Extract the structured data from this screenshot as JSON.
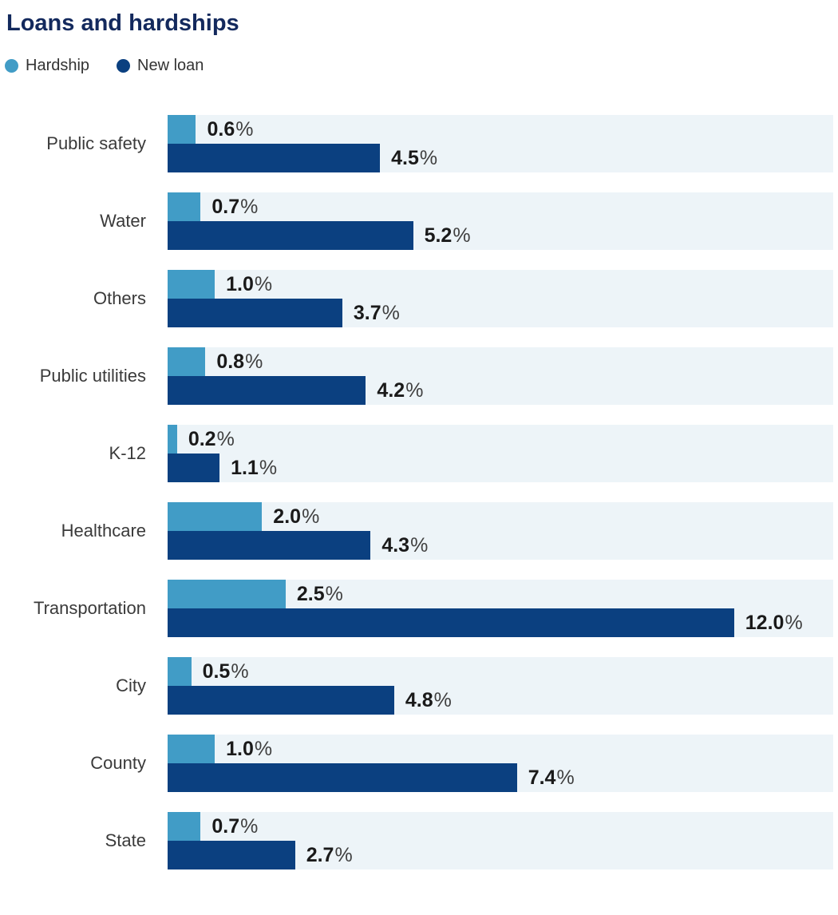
{
  "title": "Loans and hardships",
  "legend": [
    {
      "label": "Hardship",
      "color": "#419cc6"
    },
    {
      "label": "New loan",
      "color": "#0b4080"
    }
  ],
  "colors": {
    "title_text": "#13295d",
    "hardship_bar": "#419cc6",
    "new_loan_bar": "#0b4080",
    "row_band_background": "#edf4f8",
    "category_label_text": "#3a3a3a",
    "value_number_text": "#1a1a1a",
    "value_percent_text": "#404040"
  },
  "chart_data": {
    "type": "bar",
    "orientation": "horizontal",
    "title": "Loans and hardships",
    "categories": [
      "Public safety",
      "Water",
      "Others",
      "Public utilities",
      "K-12",
      "Healthcare",
      "Transportation",
      "City",
      "County",
      "State"
    ],
    "series": [
      {
        "name": "Hardship",
        "color": "#419cc6",
        "values": [
          0.6,
          0.7,
          1.0,
          0.8,
          0.2,
          2.0,
          2.5,
          0.5,
          1.0,
          0.7
        ]
      },
      {
        "name": "New loan",
        "color": "#0b4080",
        "values": [
          4.5,
          5.2,
          3.7,
          4.2,
          1.1,
          4.3,
          12.0,
          4.8,
          7.4,
          2.7
        ]
      }
    ],
    "value_suffix": "%",
    "value_decimals": 1,
    "xlim": [
      0,
      14.1
    ],
    "grid": false,
    "axis_labels_shown": false,
    "legend_position": "top-left",
    "data_labels": "outside-end"
  }
}
